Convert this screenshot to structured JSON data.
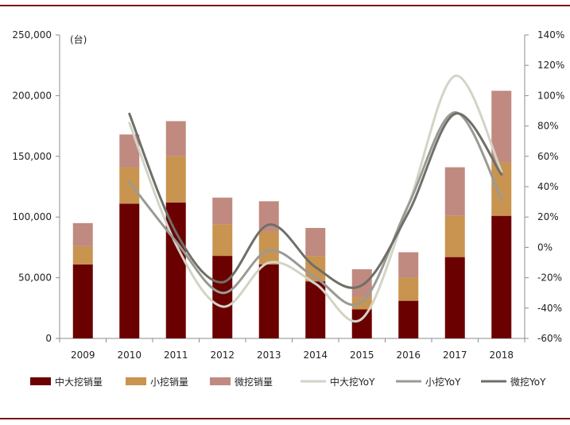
{
  "chart_data": {
    "type": "bar",
    "categories": [
      "2009",
      "2010",
      "2011",
      "2012",
      "2013",
      "2014",
      "2015",
      "2016",
      "2017",
      "2018"
    ],
    "unit_label": "(台)",
    "series": [
      {
        "name": "中大挖销量",
        "kind": "bar",
        "axis": "left",
        "stack": "sales",
        "color": "#6b0000",
        "values": [
          61000,
          111000,
          112000,
          68000,
          61000,
          47000,
          24000,
          31000,
          67000,
          101000
        ]
      },
      {
        "name": "小挖销量",
        "kind": "bar",
        "axis": "left",
        "stack": "sales",
        "color": "#c9944f",
        "values": [
          15000,
          30000,
          38000,
          26000,
          27000,
          21000,
          10000,
          19000,
          34000,
          44000
        ]
      },
      {
        "name": "微挖销量",
        "kind": "bar",
        "axis": "left",
        "stack": "sales",
        "color": "#c08a80",
        "values": [
          19000,
          27000,
          29000,
          22000,
          25000,
          23000,
          23000,
          21000,
          40000,
          59000
        ]
      },
      {
        "name": "中大挖YoY",
        "kind": "line",
        "axis": "right",
        "color": "#d3d3c6",
        "values": [
          null,
          0.82,
          0.02,
          -0.39,
          -0.1,
          -0.24,
          -0.47,
          0.28,
          1.13,
          0.5
        ]
      },
      {
        "name": "小挖YoY",
        "kind": "line",
        "axis": "right",
        "color": "#9a9a94",
        "values": [
          null,
          0.43,
          0.04,
          -0.3,
          -0.02,
          -0.2,
          -0.36,
          0.28,
          0.89,
          0.32
        ]
      },
      {
        "name": "微挖YoY",
        "kind": "line",
        "axis": "right",
        "color": "#6f6f69",
        "values": [
          null,
          0.88,
          0.1,
          -0.23,
          0.15,
          -0.13,
          -0.25,
          0.23,
          0.88,
          0.48
        ]
      }
    ],
    "ylim_left": [
      0,
      250000
    ],
    "yticks_left": [
      "0",
      "50,000",
      "100,000",
      "150,000",
      "200,000",
      "250,000"
    ],
    "ylim_right": [
      -0.6,
      1.4
    ],
    "yticks_right": [
      "-60%",
      "-40%",
      "-20%",
      "0%",
      "20%",
      "40%",
      "60%",
      "80%",
      "100%",
      "120%",
      "140%"
    ],
    "grid": false,
    "legend_position": "bottom"
  }
}
